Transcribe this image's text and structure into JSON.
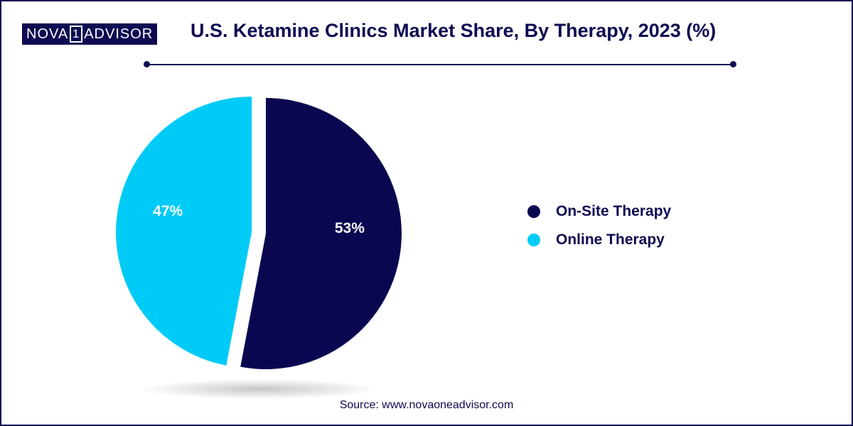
{
  "brand": {
    "left": "NOVA",
    "mid": "1",
    "right": "ADVISOR"
  },
  "chart_data": {
    "type": "pie",
    "title": "U.S. Ketamine Clinics Market Share, By Therapy, 2023 (%)",
    "slices": [
      {
        "label": "On-Site Therapy",
        "value": 53,
        "display": "53%",
        "color": "#0a0650"
      },
      {
        "label": "Online Therapy",
        "value": 47,
        "display": "47%",
        "color": "#00cbf7"
      }
    ],
    "legend_placement": "right"
  },
  "legend": [
    {
      "label": "On-Site Therapy",
      "color": "#0a0650"
    },
    {
      "label": "Online Therapy",
      "color": "#00cbf7"
    }
  ],
  "source": "Source: www.novaoneadvisor.com"
}
